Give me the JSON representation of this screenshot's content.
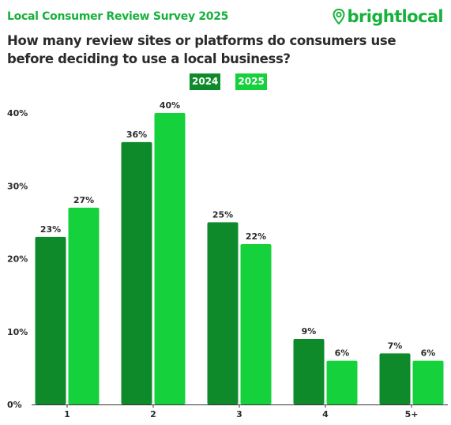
{
  "header": {
    "survey_title": "Local Consumer Review Survey 2025",
    "brand_name": "brightlocal",
    "question": "How many review sites or platforms do consumers use before deciding to use a local business?"
  },
  "colors": {
    "brand": "#17b13c",
    "series_2024": "#0f8a2b",
    "series_2025": "#14d13c",
    "text": "#2b2b2b"
  },
  "chart_data": {
    "type": "bar",
    "categories": [
      "1",
      "2",
      "3",
      "4",
      "5+"
    ],
    "series": [
      {
        "name": "2024",
        "values": [
          23,
          36,
          25,
          9,
          7
        ]
      },
      {
        "name": "2025",
        "values": [
          27,
          40,
          22,
          6,
          6
        ]
      }
    ],
    "value_suffix": "%",
    "yticks": [
      "0%",
      "10%",
      "20%",
      "30%",
      "40%"
    ],
    "ylim": [
      0,
      40
    ],
    "grid": false,
    "legend_position": "top-center",
    "title": "How many review sites or platforms do consumers use before deciding to use a local business?"
  }
}
